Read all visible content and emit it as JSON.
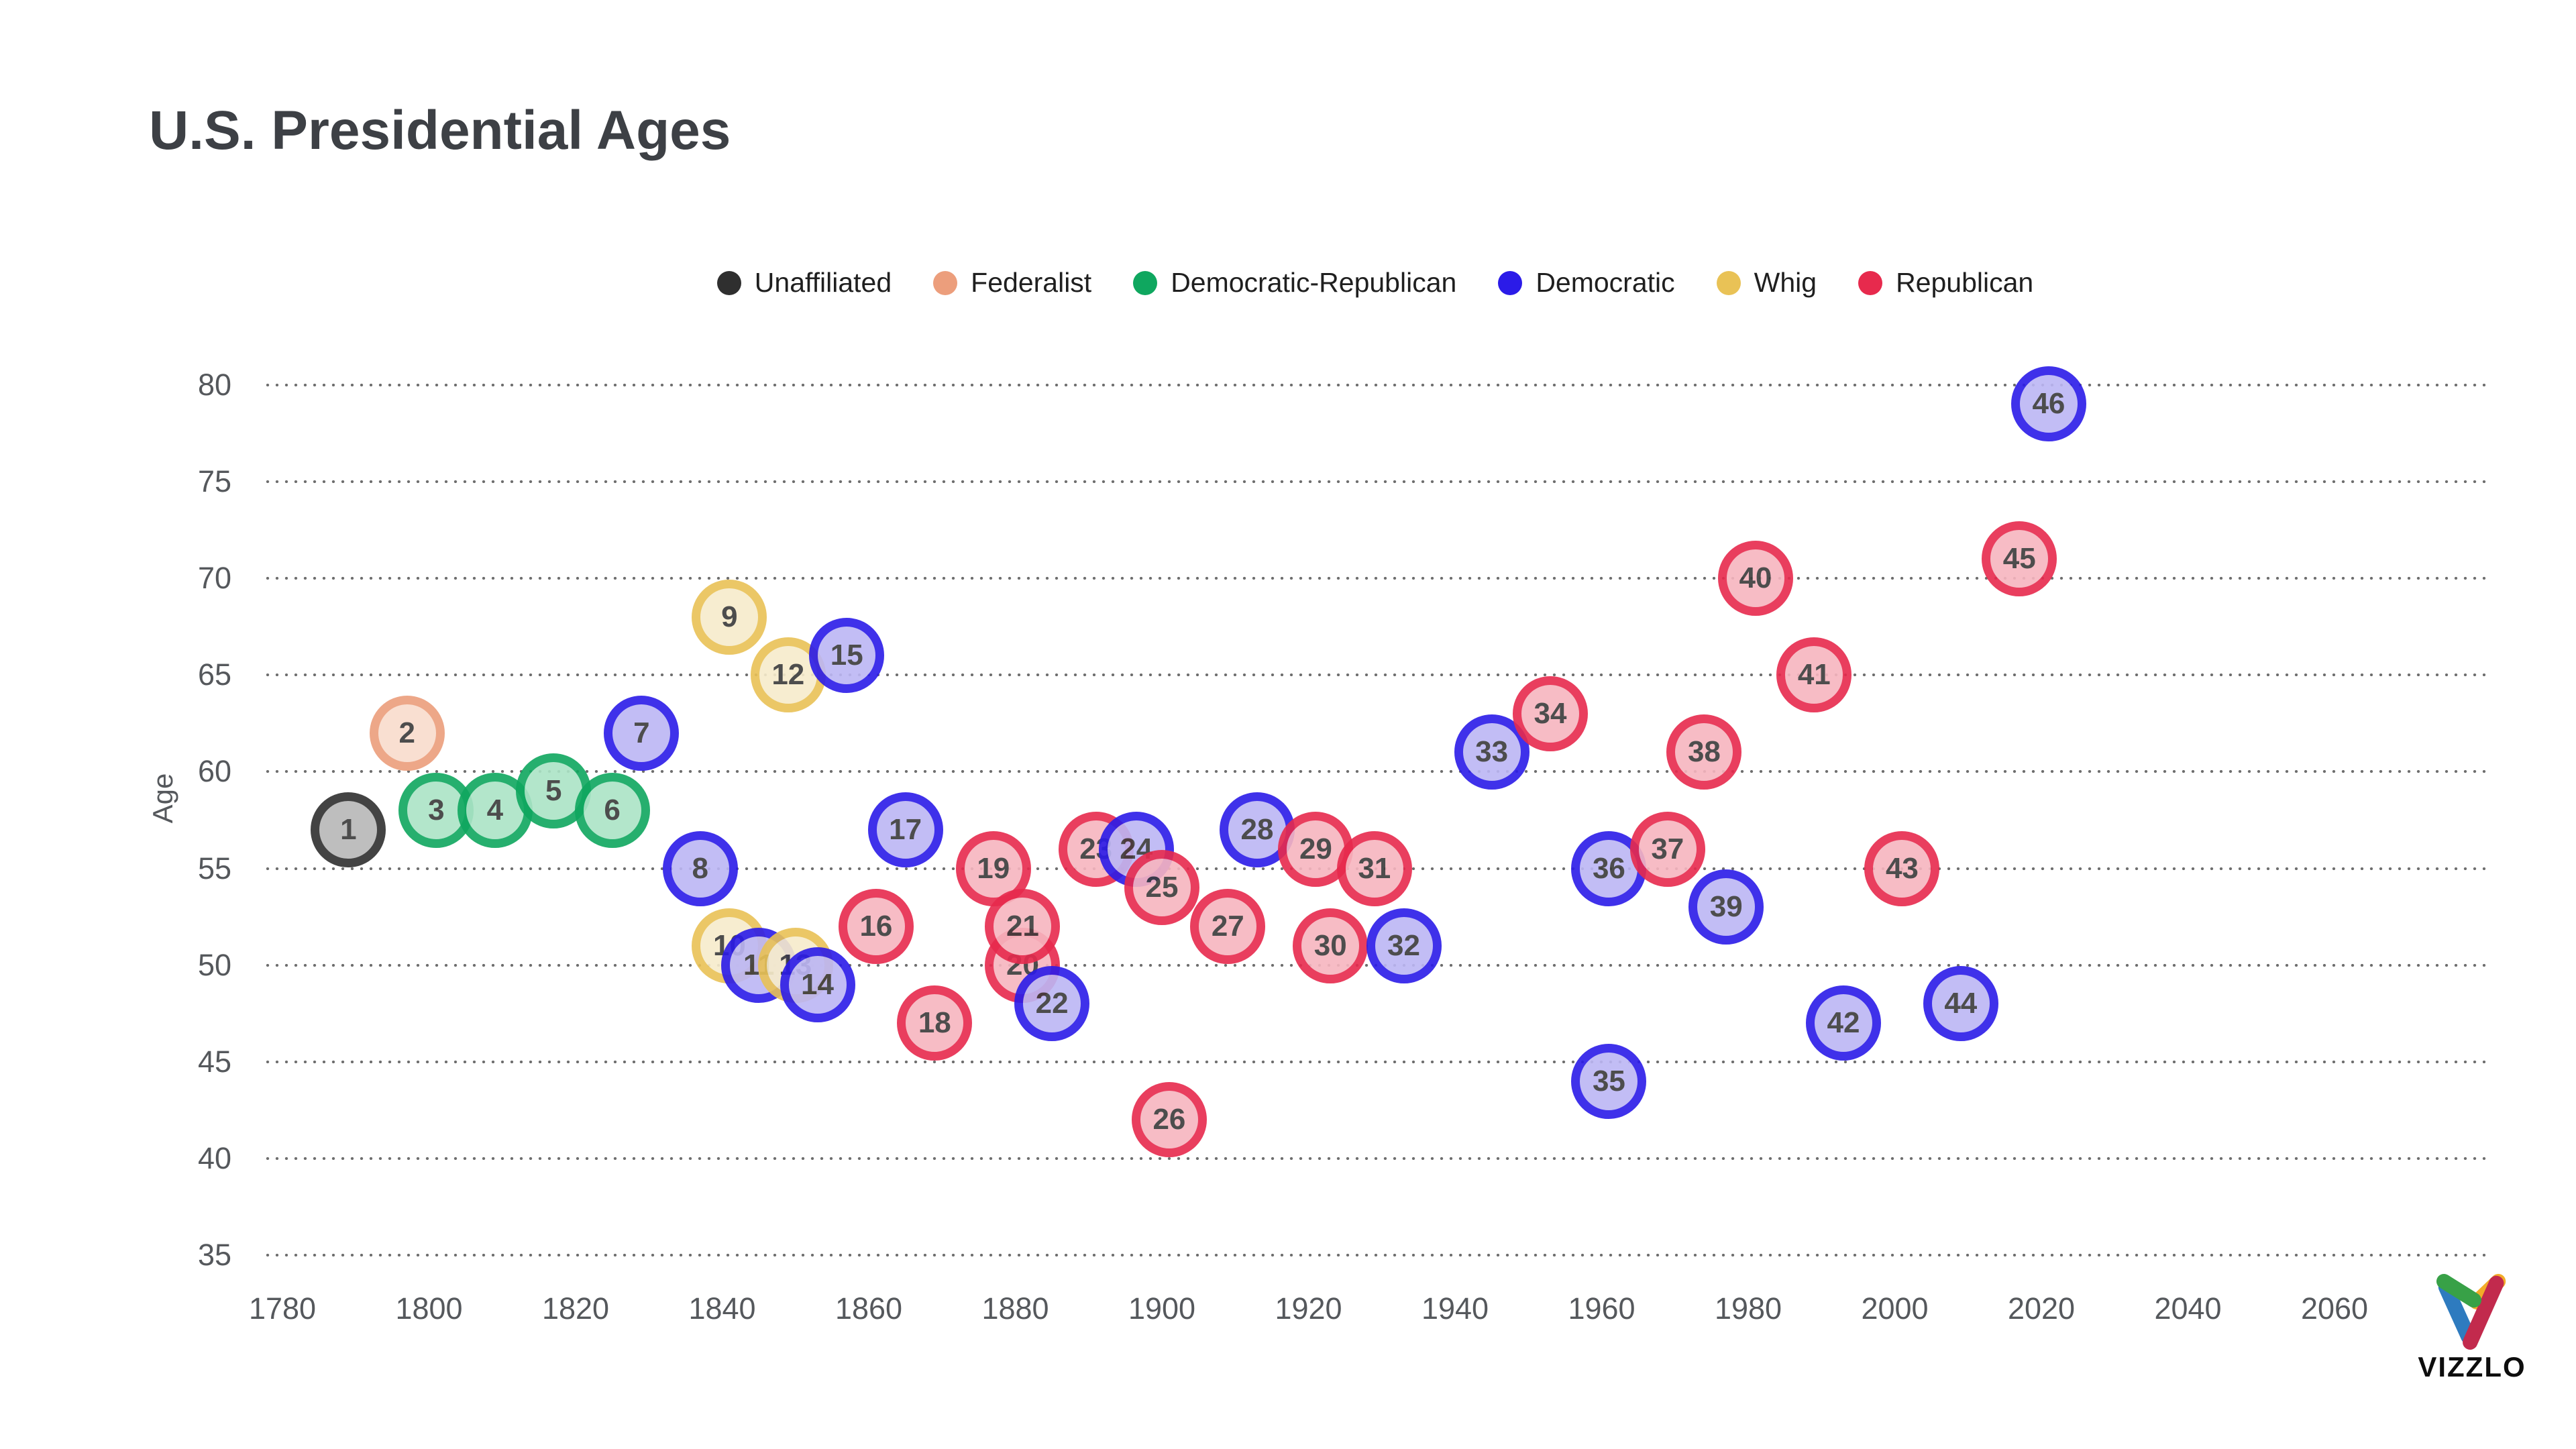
{
  "title": "U.S. Presidential Ages",
  "axes": {
    "y_label": "Age",
    "y_ticks": [
      35,
      40,
      45,
      50,
      55,
      60,
      65,
      70,
      75,
      80
    ],
    "x_ticks": [
      1780,
      1800,
      1820,
      1840,
      1860,
      1880,
      1900,
      1920,
      1940,
      1960,
      1980,
      2000,
      2020,
      2040,
      2060
    ]
  },
  "legend": [
    {
      "key": "unaffiliated",
      "label": "Unaffiliated"
    },
    {
      "key": "federalist",
      "label": "Federalist"
    },
    {
      "key": "democratic-republican",
      "label": "Democratic-Republican"
    },
    {
      "key": "democratic",
      "label": "Democratic"
    },
    {
      "key": "whig",
      "label": "Whig"
    },
    {
      "key": "republican",
      "label": "Republican"
    }
  ],
  "branding": {
    "wordmark": "VIZZLO"
  },
  "chart_data": {
    "type": "scatter",
    "title": "U.S. Presidential Ages",
    "xlabel": "",
    "ylabel": "Age",
    "xlim": [
      1780,
      2060
    ],
    "ylim": [
      35,
      80
    ],
    "grid": "dotted-horizontal",
    "legend_position": "top-center",
    "parties": {
      "unaffiliated": {
        "stroke": "#2f2f2f",
        "fill": "#b7b7b7"
      },
      "federalist": {
        "stroke": "#ec9e7c",
        "fill": "#f9dccd"
      },
      "democratic-republican": {
        "stroke": "#0fa75f",
        "fill": "#abe4c6"
      },
      "democratic": {
        "stroke": "#2b1be8",
        "fill": "#bcb6f4"
      },
      "whig": {
        "stroke": "#e9c256",
        "fill": "#f7eccb"
      },
      "republican": {
        "stroke": "#e72a4d",
        "fill": "#f7b5bf"
      }
    },
    "points": [
      {
        "n": 1,
        "year": 1789,
        "age": 57,
        "party": "unaffiliated"
      },
      {
        "n": 2,
        "year": 1797,
        "age": 62,
        "party": "federalist"
      },
      {
        "n": 3,
        "year": 1801,
        "age": 58,
        "party": "democratic-republican"
      },
      {
        "n": 4,
        "year": 1809,
        "age": 58,
        "party": "democratic-republican"
      },
      {
        "n": 5,
        "year": 1817,
        "age": 59,
        "party": "democratic-republican"
      },
      {
        "n": 6,
        "year": 1825,
        "age": 58,
        "party": "democratic-republican"
      },
      {
        "n": 7,
        "year": 1829,
        "age": 62,
        "party": "democratic"
      },
      {
        "n": 8,
        "year": 1837,
        "age": 55,
        "party": "democratic"
      },
      {
        "n": 9,
        "year": 1841,
        "age": 68,
        "party": "whig"
      },
      {
        "n": 10,
        "year": 1841,
        "age": 51,
        "party": "whig"
      },
      {
        "n": 11,
        "year": 1845,
        "age": 50,
        "party": "democratic"
      },
      {
        "n": 12,
        "year": 1849,
        "age": 65,
        "party": "whig"
      },
      {
        "n": 13,
        "year": 1850,
        "age": 50,
        "party": "whig"
      },
      {
        "n": 14,
        "year": 1853,
        "age": 49,
        "party": "democratic"
      },
      {
        "n": 15,
        "year": 1857,
        "age": 66,
        "party": "democratic"
      },
      {
        "n": 16,
        "year": 1861,
        "age": 52,
        "party": "republican"
      },
      {
        "n": 17,
        "year": 1865,
        "age": 57,
        "party": "democratic"
      },
      {
        "n": 18,
        "year": 1869,
        "age": 47,
        "party": "republican"
      },
      {
        "n": 19,
        "year": 1877,
        "age": 55,
        "party": "republican"
      },
      {
        "n": 20,
        "year": 1881,
        "age": 50,
        "party": "republican"
      },
      {
        "n": 21,
        "year": 1881,
        "age": 52,
        "party": "republican"
      },
      {
        "n": 22,
        "year": 1885,
        "age": 48,
        "party": "democratic"
      },
      {
        "n": 23,
        "year": 1889,
        "age": 56,
        "party": "republican",
        "dx": 2
      },
      {
        "n": 24,
        "year": 1893,
        "age": 56,
        "party": "democratic",
        "dx": 3.5
      },
      {
        "n": 25,
        "year": 1897,
        "age": 54,
        "party": "republican",
        "dx": 3
      },
      {
        "n": 26,
        "year": 1901,
        "age": 42,
        "party": "republican"
      },
      {
        "n": 27,
        "year": 1909,
        "age": 52,
        "party": "republican"
      },
      {
        "n": 28,
        "year": 1913,
        "age": 57,
        "party": "democratic"
      },
      {
        "n": 29,
        "year": 1921,
        "age": 56,
        "party": "republican"
      },
      {
        "n": 30,
        "year": 1923,
        "age": 51,
        "party": "republican"
      },
      {
        "n": 31,
        "year": 1929,
        "age": 55,
        "party": "republican"
      },
      {
        "n": 32,
        "year": 1933,
        "age": 51,
        "party": "democratic"
      },
      {
        "n": 33,
        "year": 1945,
        "age": 61,
        "party": "democratic"
      },
      {
        "n": 34,
        "year": 1953,
        "age": 63,
        "party": "republican"
      },
      {
        "n": 35,
        "year": 1961,
        "age": 44,
        "party": "democratic"
      },
      {
        "n": 36,
        "year": 1963,
        "age": 55,
        "party": "democratic",
        "dx": -2
      },
      {
        "n": 37,
        "year": 1969,
        "age": 56,
        "party": "republican"
      },
      {
        "n": 38,
        "year": 1974,
        "age": 61,
        "party": "republican"
      },
      {
        "n": 39,
        "year": 1977,
        "age": 53,
        "party": "democratic"
      },
      {
        "n": 40,
        "year": 1981,
        "age": 70,
        "party": "republican"
      },
      {
        "n": 41,
        "year": 1989,
        "age": 65,
        "party": "republican"
      },
      {
        "n": 42,
        "year": 1993,
        "age": 47,
        "party": "democratic"
      },
      {
        "n": 43,
        "year": 2001,
        "age": 55,
        "party": "republican"
      },
      {
        "n": 44,
        "year": 2009,
        "age": 48,
        "party": "democratic"
      },
      {
        "n": 45,
        "year": 2017,
        "age": 71,
        "party": "republican"
      },
      {
        "n": 46,
        "year": 2021,
        "age": 79,
        "party": "democratic"
      }
    ]
  }
}
